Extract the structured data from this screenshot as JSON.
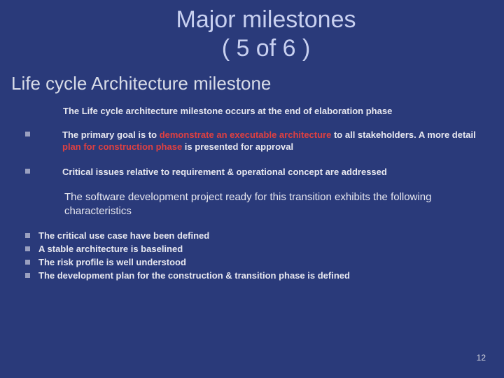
{
  "background_color": "#2a3a7a",
  "text_color": "#e8e8f0",
  "title_color": "#c8d0f0",
  "subtitle_color": "#d8dce8",
  "bullet_square_color": "#9aa0c0",
  "highlight_color": "#e04040",
  "title_line1": "Major milestones",
  "title_line2": "( 5 of 6 )",
  "subtitle": "Life cycle Architecture milestone",
  "intro": "The Life cycle architecture milestone occurs at the end of elaboration phase",
  "point1_pre": "The primary goal is to ",
  "point1_hl1": "demonstrate an executable architecture",
  "point1_mid": " to all stakeholders. A more detail ",
  "point1_hl2": "plan for construction phase",
  "point1_post": " is presented for approval",
  "point2": "Critical issues relative to requirement & operational concept are addressed",
  "mid_paragraph": "The software development project ready for this transition exhibits the following characteristics",
  "char1": "The critical use case have been defined",
  "char2": "A stable architecture is baselined",
  "char3": "The risk profile is well understood",
  "char4": "The development plan for the construction & transition phase is defined",
  "page_number": "12",
  "title_fontsize": 34,
  "subtitle_fontsize": 26,
  "body_bold_fontsize": 13,
  "mid_para_fontsize": 15,
  "pagenum_fontsize": 12
}
